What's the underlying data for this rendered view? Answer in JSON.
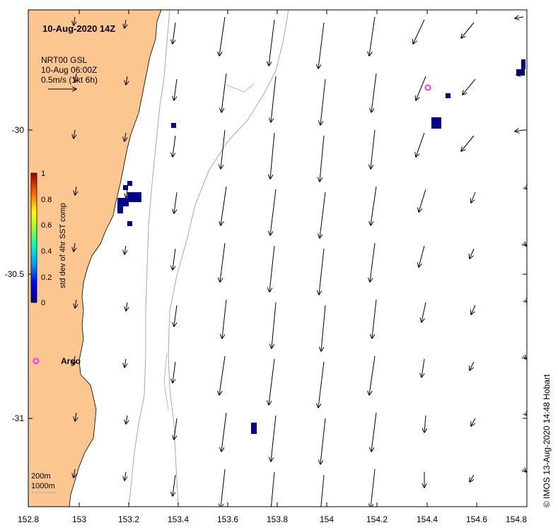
{
  "title": "10-Aug-2020 14Z",
  "product": {
    "name": "NRT00 GSL",
    "time": "10-Aug 06:00Z",
    "scale_label": "0.5m/s (1kt 6h)"
  },
  "colorbar": {
    "label": "std dev of 4hr SST comp",
    "ticks": [
      "1",
      "0.8",
      "0.6",
      "0.4",
      "0.2",
      "0"
    ]
  },
  "x_ticks": [
    "152.8",
    "153",
    "153.2",
    "153.4",
    "153.6",
    "153.8",
    "154",
    "154.2",
    "154.4",
    "154.6",
    "154.8"
  ],
  "y_ticks": [
    "-30",
    "-30.5",
    "-31"
  ],
  "x_range": [
    152.8,
    154.8
  ],
  "y_range": [
    -29.6,
    -31.3
  ],
  "argo": {
    "label": "Argo"
  },
  "depth_legend": {
    "shallow": "200m",
    "deep": "1000m"
  },
  "credit": "© IMOS 13-Aug-2020 14:48 Hobart",
  "colors": {
    "land": "#fbc690",
    "marker": "#ff33ff",
    "sst_patch": "#00008b",
    "contour": "#a8a8a8"
  },
  "chart_data": {
    "type": "vector-field",
    "units": "m/s",
    "arrows_note": "surface current vectors over NSW coast, predominantly southward flow offshore"
  }
}
